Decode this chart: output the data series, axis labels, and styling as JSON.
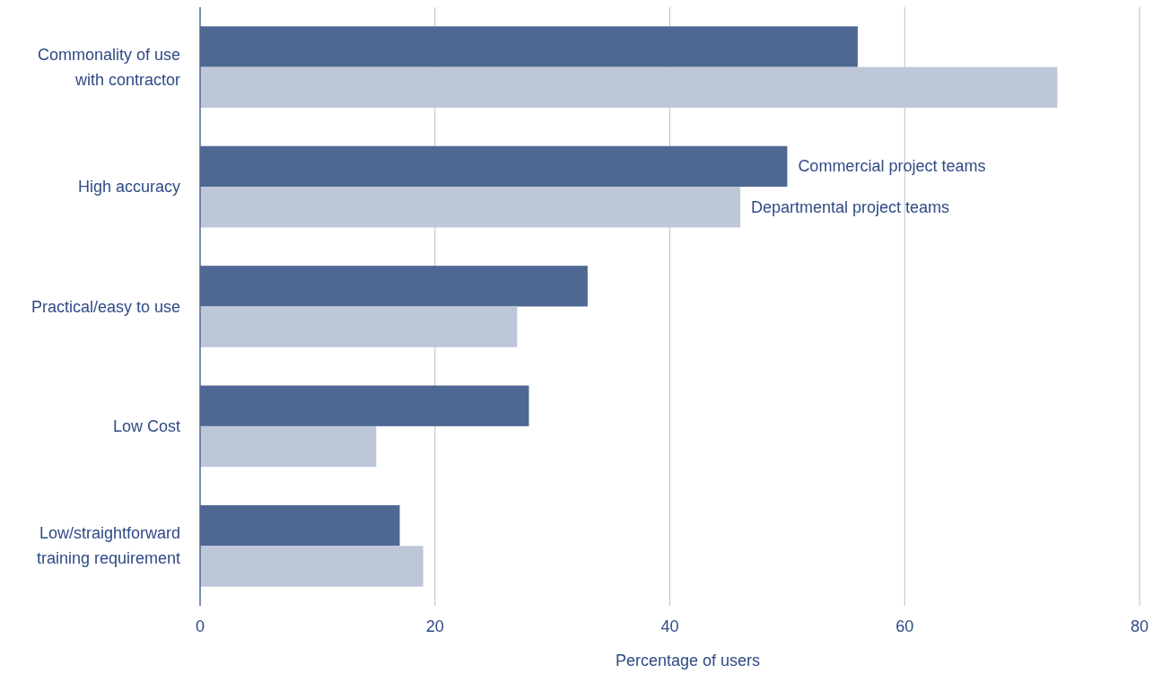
{
  "chart_data": {
    "type": "bar",
    "orientation": "horizontal",
    "xlabel": "Percentage of users",
    "categories": [
      "Commonality of use\nwith contractor",
      "High accuracy",
      "Practical/easy to use",
      "Low Cost",
      "Low/straightforward\ntraining requirement"
    ],
    "series": [
      {
        "name": "Commercial project teams",
        "color": "#4f6893",
        "values": [
          56,
          50,
          33,
          28,
          17
        ]
      },
      {
        "name": "Departmental project teams",
        "color": "#bec7d8",
        "values": [
          73,
          46,
          27,
          15,
          19
        ]
      }
    ],
    "xlim": [
      0,
      80
    ],
    "xticks": [
      0,
      20,
      40,
      60,
      80
    ],
    "grid": "x"
  }
}
